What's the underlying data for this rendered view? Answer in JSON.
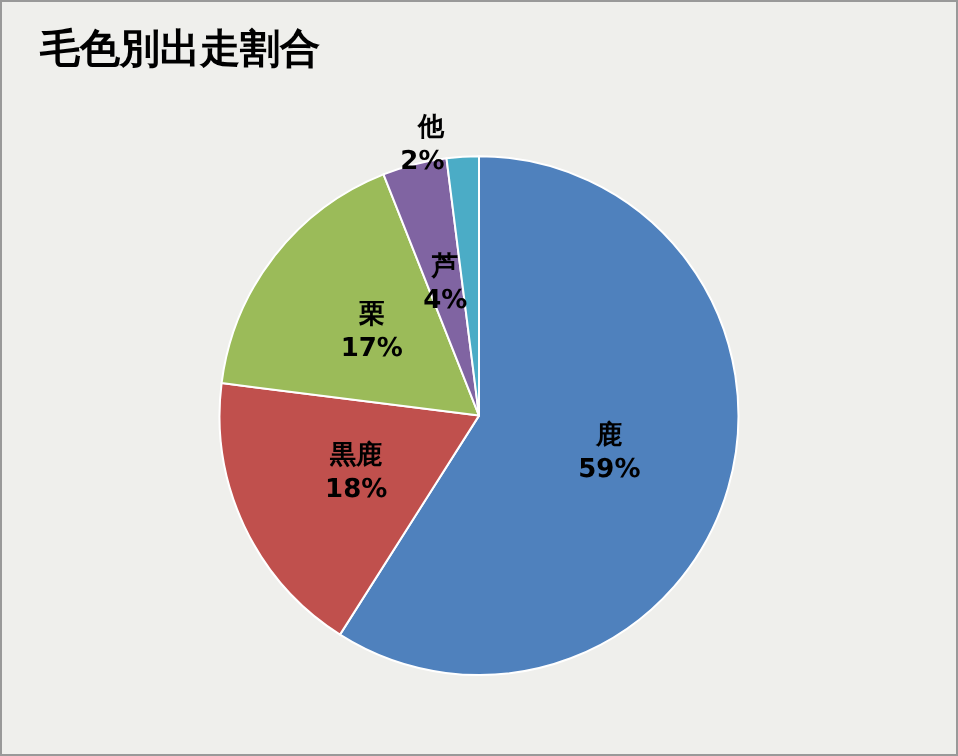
{
  "chart_data": {
    "type": "pie",
    "title": "毛色別出走割合",
    "categories": [
      "鹿",
      "黒鹿",
      "栗",
      "芦",
      "他"
    ],
    "values": [
      59,
      18,
      17,
      4,
      2
    ],
    "colors": [
      "#4f81bd",
      "#c0504d",
      "#9bbb59",
      "#8064a2",
      "#4bacc6"
    ],
    "value_labels": [
      "59%",
      "18%",
      "17%",
      "4%",
      "2%"
    ],
    "legend": false
  }
}
